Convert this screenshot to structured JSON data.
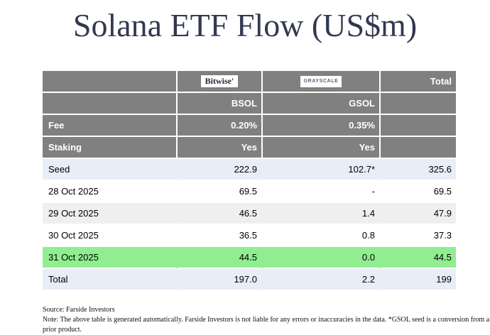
{
  "page": {
    "title": "Solana ETF Flow (US$m)"
  },
  "table": {
    "header": {
      "bitwise_logo": "Bitwise'",
      "grayscale_logo": "GRAYSCALE",
      "total_label": "Total",
      "tickers": [
        "BSOL",
        "GSOL"
      ],
      "fee_label": "Fee",
      "fee_values": [
        "0.20%",
        "0.35%"
      ],
      "staking_label": "Staking",
      "staking_values": [
        "Yes",
        "Yes"
      ]
    },
    "rows": [
      {
        "label": "Seed",
        "bsol": "222.9",
        "gsol": "102.7*",
        "total": "325.6",
        "highlight": "lavender"
      },
      {
        "label": "28 Oct 2025",
        "bsol": "69.5",
        "gsol": "-",
        "total": "69.5",
        "highlight": "white"
      },
      {
        "label": "29 Oct 2025",
        "bsol": "46.5",
        "gsol": "1.4",
        "total": "47.9",
        "highlight": "gray"
      },
      {
        "label": "30 Oct 2025",
        "bsol": "36.5",
        "gsol": "0.8",
        "total": "37.3",
        "highlight": "white"
      },
      {
        "label": "31 Oct 2025",
        "bsol": "44.5",
        "gsol": "0.0",
        "total": "44.5",
        "highlight": "green"
      },
      {
        "label": "Total",
        "bsol": "197.0",
        "gsol": "2.2",
        "total": "199",
        "highlight": "lavender"
      }
    ]
  },
  "footer": {
    "source": "Source: Farside Investors",
    "note": "Note: The above table is generated automatically. Farside Investors is not liable for any errors or inaccuracies in the data. *GSOL seed is a conversion from a prior product."
  },
  "colors": {
    "title_text": "#333851",
    "header_bg": "#808080",
    "header_text": "#ffffff",
    "lavender_row_bg": "#e8edf7",
    "gray_row_bg": "#efefef",
    "green_row_bg": "#90ee90"
  },
  "chart_data": {
    "type": "table",
    "title": "Solana ETF Flow (US$m)",
    "categories": [
      "Seed",
      "28 Oct 2025",
      "29 Oct 2025",
      "30 Oct 2025",
      "31 Oct 2025",
      "Total"
    ],
    "series": [
      {
        "name": "BSOL",
        "issuer": "Bitwise",
        "fee": "0.20%",
        "staking": "Yes",
        "values": [
          222.9,
          69.5,
          46.5,
          36.5,
          44.5,
          197.0
        ]
      },
      {
        "name": "GSOL",
        "issuer": "Grayscale",
        "fee": "0.35%",
        "staking": "Yes",
        "values": [
          102.7,
          null,
          1.4,
          0.8,
          0.0,
          2.2
        ]
      },
      {
        "name": "Total",
        "values": [
          325.6,
          69.5,
          47.9,
          37.3,
          44.5,
          199
        ]
      }
    ],
    "annotations": [
      "GSOL seed shown as 102.7* (conversion from a prior product)",
      "31 Oct 2025 row highlighted green"
    ],
    "source": "Farside Investors"
  }
}
